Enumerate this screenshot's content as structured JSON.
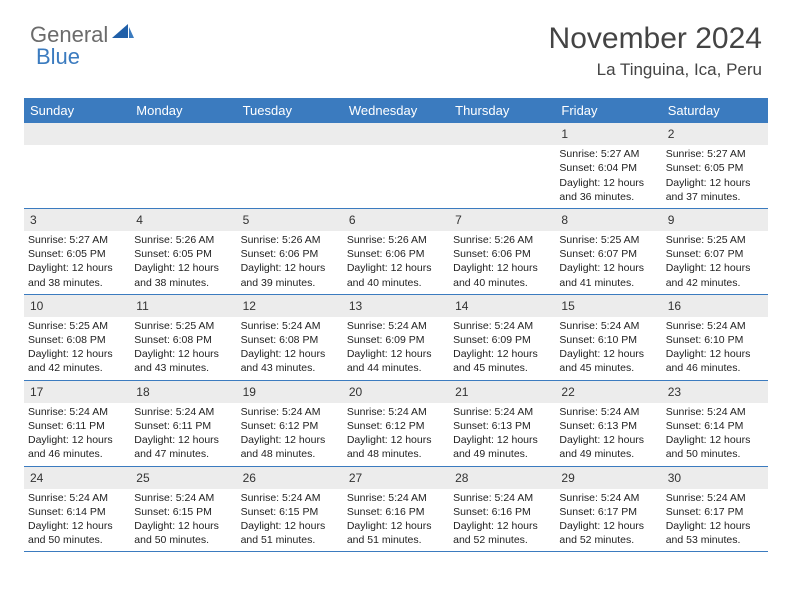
{
  "logo": {
    "text1": "General",
    "text2": "Blue"
  },
  "header": {
    "month_title": "November 2024",
    "location": "La Tinguina, Ica, Peru"
  },
  "day_names": [
    "Sunday",
    "Monday",
    "Tuesday",
    "Wednesday",
    "Thursday",
    "Friday",
    "Saturday"
  ],
  "weeks": [
    [
      {
        "n": "",
        "sr": "",
        "ss": "",
        "dl": ""
      },
      {
        "n": "",
        "sr": "",
        "ss": "",
        "dl": ""
      },
      {
        "n": "",
        "sr": "",
        "ss": "",
        "dl": ""
      },
      {
        "n": "",
        "sr": "",
        "ss": "",
        "dl": ""
      },
      {
        "n": "",
        "sr": "",
        "ss": "",
        "dl": ""
      },
      {
        "n": "1",
        "sr": "Sunrise: 5:27 AM",
        "ss": "Sunset: 6:04 PM",
        "dl": "Daylight: 12 hours and 36 minutes."
      },
      {
        "n": "2",
        "sr": "Sunrise: 5:27 AM",
        "ss": "Sunset: 6:05 PM",
        "dl": "Daylight: 12 hours and 37 minutes."
      }
    ],
    [
      {
        "n": "3",
        "sr": "Sunrise: 5:27 AM",
        "ss": "Sunset: 6:05 PM",
        "dl": "Daylight: 12 hours and 38 minutes."
      },
      {
        "n": "4",
        "sr": "Sunrise: 5:26 AM",
        "ss": "Sunset: 6:05 PM",
        "dl": "Daylight: 12 hours and 38 minutes."
      },
      {
        "n": "5",
        "sr": "Sunrise: 5:26 AM",
        "ss": "Sunset: 6:06 PM",
        "dl": "Daylight: 12 hours and 39 minutes."
      },
      {
        "n": "6",
        "sr": "Sunrise: 5:26 AM",
        "ss": "Sunset: 6:06 PM",
        "dl": "Daylight: 12 hours and 40 minutes."
      },
      {
        "n": "7",
        "sr": "Sunrise: 5:26 AM",
        "ss": "Sunset: 6:06 PM",
        "dl": "Daylight: 12 hours and 40 minutes."
      },
      {
        "n": "8",
        "sr": "Sunrise: 5:25 AM",
        "ss": "Sunset: 6:07 PM",
        "dl": "Daylight: 12 hours and 41 minutes."
      },
      {
        "n": "9",
        "sr": "Sunrise: 5:25 AM",
        "ss": "Sunset: 6:07 PM",
        "dl": "Daylight: 12 hours and 42 minutes."
      }
    ],
    [
      {
        "n": "10",
        "sr": "Sunrise: 5:25 AM",
        "ss": "Sunset: 6:08 PM",
        "dl": "Daylight: 12 hours and 42 minutes."
      },
      {
        "n": "11",
        "sr": "Sunrise: 5:25 AM",
        "ss": "Sunset: 6:08 PM",
        "dl": "Daylight: 12 hours and 43 minutes."
      },
      {
        "n": "12",
        "sr": "Sunrise: 5:24 AM",
        "ss": "Sunset: 6:08 PM",
        "dl": "Daylight: 12 hours and 43 minutes."
      },
      {
        "n": "13",
        "sr": "Sunrise: 5:24 AM",
        "ss": "Sunset: 6:09 PM",
        "dl": "Daylight: 12 hours and 44 minutes."
      },
      {
        "n": "14",
        "sr": "Sunrise: 5:24 AM",
        "ss": "Sunset: 6:09 PM",
        "dl": "Daylight: 12 hours and 45 minutes."
      },
      {
        "n": "15",
        "sr": "Sunrise: 5:24 AM",
        "ss": "Sunset: 6:10 PM",
        "dl": "Daylight: 12 hours and 45 minutes."
      },
      {
        "n": "16",
        "sr": "Sunrise: 5:24 AM",
        "ss": "Sunset: 6:10 PM",
        "dl": "Daylight: 12 hours and 46 minutes."
      }
    ],
    [
      {
        "n": "17",
        "sr": "Sunrise: 5:24 AM",
        "ss": "Sunset: 6:11 PM",
        "dl": "Daylight: 12 hours and 46 minutes."
      },
      {
        "n": "18",
        "sr": "Sunrise: 5:24 AM",
        "ss": "Sunset: 6:11 PM",
        "dl": "Daylight: 12 hours and 47 minutes."
      },
      {
        "n": "19",
        "sr": "Sunrise: 5:24 AM",
        "ss": "Sunset: 6:12 PM",
        "dl": "Daylight: 12 hours and 48 minutes."
      },
      {
        "n": "20",
        "sr": "Sunrise: 5:24 AM",
        "ss": "Sunset: 6:12 PM",
        "dl": "Daylight: 12 hours and 48 minutes."
      },
      {
        "n": "21",
        "sr": "Sunrise: 5:24 AM",
        "ss": "Sunset: 6:13 PM",
        "dl": "Daylight: 12 hours and 49 minutes."
      },
      {
        "n": "22",
        "sr": "Sunrise: 5:24 AM",
        "ss": "Sunset: 6:13 PM",
        "dl": "Daylight: 12 hours and 49 minutes."
      },
      {
        "n": "23",
        "sr": "Sunrise: 5:24 AM",
        "ss": "Sunset: 6:14 PM",
        "dl": "Daylight: 12 hours and 50 minutes."
      }
    ],
    [
      {
        "n": "24",
        "sr": "Sunrise: 5:24 AM",
        "ss": "Sunset: 6:14 PM",
        "dl": "Daylight: 12 hours and 50 minutes."
      },
      {
        "n": "25",
        "sr": "Sunrise: 5:24 AM",
        "ss": "Sunset: 6:15 PM",
        "dl": "Daylight: 12 hours and 50 minutes."
      },
      {
        "n": "26",
        "sr": "Sunrise: 5:24 AM",
        "ss": "Sunset: 6:15 PM",
        "dl": "Daylight: 12 hours and 51 minutes."
      },
      {
        "n": "27",
        "sr": "Sunrise: 5:24 AM",
        "ss": "Sunset: 6:16 PM",
        "dl": "Daylight: 12 hours and 51 minutes."
      },
      {
        "n": "28",
        "sr": "Sunrise: 5:24 AM",
        "ss": "Sunset: 6:16 PM",
        "dl": "Daylight: 12 hours and 52 minutes."
      },
      {
        "n": "29",
        "sr": "Sunrise: 5:24 AM",
        "ss": "Sunset: 6:17 PM",
        "dl": "Daylight: 12 hours and 52 minutes."
      },
      {
        "n": "30",
        "sr": "Sunrise: 5:24 AM",
        "ss": "Sunset: 6:17 PM",
        "dl": "Daylight: 12 hours and 53 minutes."
      }
    ]
  ],
  "colors": {
    "header_bg": "#3b7bbf",
    "header_text": "#ffffff",
    "daynum_bg": "#ececec",
    "border": "#3b7bbf"
  }
}
